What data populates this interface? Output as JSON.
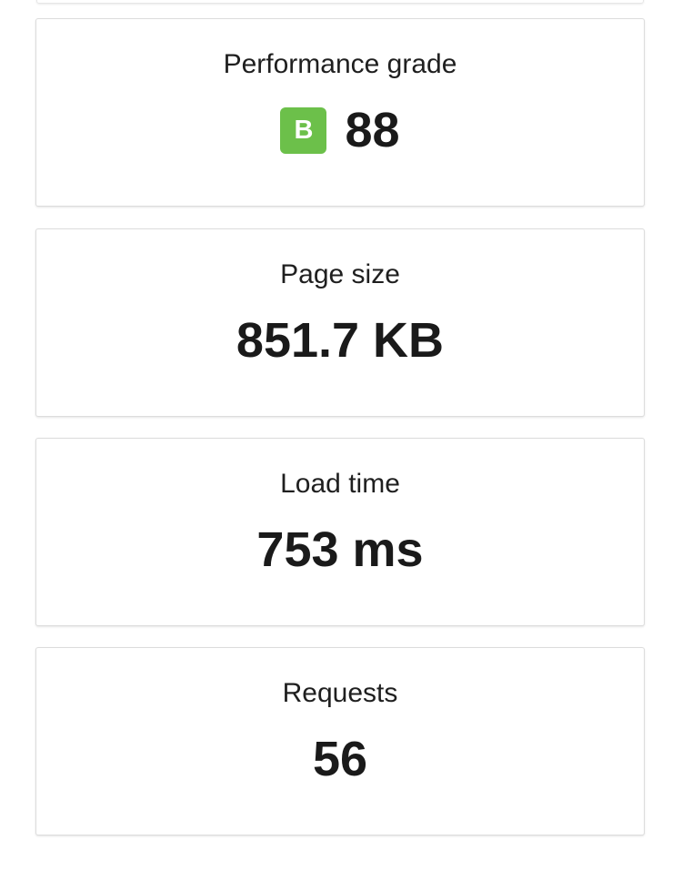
{
  "cards": [
    {
      "label": "Performance grade",
      "grade": "B",
      "grade_color": "#6cc04a",
      "value": "88"
    },
    {
      "label": "Page size",
      "value": "851.7 KB"
    },
    {
      "label": "Load time",
      "value": "753 ms"
    },
    {
      "label": "Requests",
      "value": "56"
    }
  ]
}
